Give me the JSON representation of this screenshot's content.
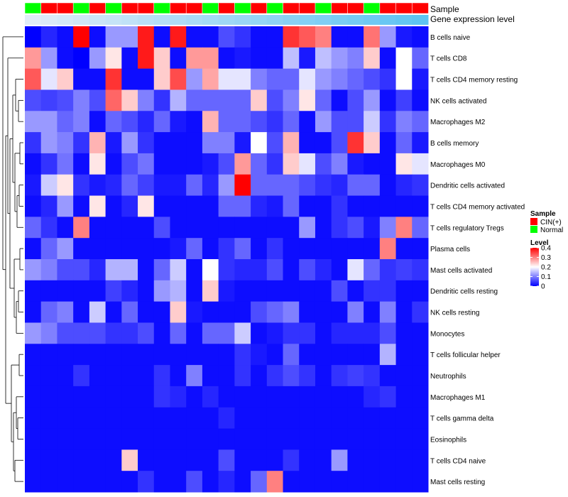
{
  "chart_data": {
    "type": "heatmap",
    "title": "",
    "annotations": {
      "sample_label": "Sample",
      "gene_label": "Gene expression level",
      "sample_groups": [
        "N",
        "C",
        "C",
        "N",
        "C",
        "N",
        "C",
        "C",
        "N",
        "C",
        "C",
        "N",
        "C",
        "N",
        "C",
        "N",
        "C",
        "C",
        "N",
        "C",
        "C",
        "N",
        "C",
        "C",
        "C"
      ]
    },
    "legend": {
      "sample_title": "Sample",
      "sample_items": [
        {
          "label": "CIN(+)",
          "color": "#ff0000"
        },
        {
          "label": "Normal",
          "color": "#00ff00"
        }
      ],
      "level_title": "Level",
      "level_ticks": [
        "0.4",
        "0.3",
        "0.2",
        "0.1",
        "0"
      ],
      "level_values": [
        0.4,
        0.3,
        0.2,
        0.1,
        0.0
      ]
    },
    "rows": [
      "B cells naive",
      "T cells CD8",
      "T cells CD4 memory resting",
      "NK cells activated",
      "Macrophages M2",
      "B cells memory",
      "Macrophages M0",
      "Dendritic cells activated",
      "T cells CD4 memory activated",
      "T cells regulatory  Tregs",
      "Plasma cells",
      "Mast cells activated",
      "Dendritic cells resting",
      "NK cells resting",
      "Monocytes",
      "T cells follicular helper",
      "Neutrophils",
      "Macrophages M1",
      "T cells gamma delta",
      "Eosinophils",
      "T cells CD4 naive",
      "Mast cells resting"
    ],
    "values": [
      [
        0,
        0.03,
        0.01,
        0.4,
        0.01,
        0.12,
        0.12,
        0.38,
        0.01,
        0.38,
        0.01,
        0.01,
        0.06,
        0.04,
        0.01,
        0.01,
        0.36,
        0.33,
        0.3,
        0.01,
        0.01,
        0.31,
        0.12,
        0.02,
        0.01
      ],
      [
        0.28,
        0.12,
        0.01,
        0,
        0.12,
        0.22,
        0.01,
        0.38,
        0.24,
        0.01,
        0.28,
        0.28,
        0.01,
        0.02,
        0.01,
        0.01,
        0.15,
        0.02,
        0.15,
        0.12,
        0.1,
        0.24,
        0.01,
        0.2,
        0.08
      ],
      [
        0.33,
        0.18,
        0.24,
        0.01,
        0.01,
        0.36,
        0.01,
        0.01,
        0.24,
        0.34,
        0.12,
        0.27,
        0.18,
        0.18,
        0.1,
        0.08,
        0.08,
        0.18,
        0.12,
        0.1,
        0.08,
        0.06,
        0.04,
        0.2,
        0.02
      ],
      [
        0.06,
        0.05,
        0.06,
        0.1,
        0.06,
        0.32,
        0.24,
        0.1,
        0.04,
        0.14,
        0.08,
        0.08,
        0.08,
        0.08,
        0.24,
        0.06,
        0.1,
        0.22,
        0.08,
        0.01,
        0.06,
        0.12,
        0.01,
        0.05,
        0.01
      ],
      [
        0.12,
        0.12,
        0.08,
        0.1,
        0.01,
        0.08,
        0.06,
        0.03,
        0.08,
        0.02,
        0.01,
        0.26,
        0.08,
        0.08,
        0.06,
        0.04,
        0.08,
        0.01,
        0.12,
        0.06,
        0.06,
        0.16,
        0.04,
        0.1,
        0.08
      ],
      [
        0.04,
        0.12,
        0.1,
        0.04,
        0.26,
        0.02,
        0.12,
        0.04,
        0.01,
        0.01,
        0.01,
        0.1,
        0.1,
        0.02,
        0.2,
        0.06,
        0.26,
        0.01,
        0.01,
        0.06,
        0.36,
        0.24,
        0.01,
        0.08,
        0.02
      ],
      [
        0.01,
        0.04,
        0.09,
        0.01,
        0.22,
        0.01,
        0.06,
        0.09,
        0.01,
        0.01,
        0.01,
        0.02,
        0.06,
        0.28,
        0.08,
        0.04,
        0.24,
        0.18,
        0.06,
        0.1,
        0.02,
        0.01,
        0.01,
        0.22,
        0.18
      ],
      [
        0.02,
        0.16,
        0.22,
        0.04,
        0.02,
        0.03,
        0.08,
        0.05,
        0.02,
        0.02,
        0.08,
        0.03,
        0.12,
        0.4,
        0.08,
        0.08,
        0.08,
        0.06,
        0.04,
        0.03,
        0.08,
        0.08,
        0.01,
        0.03,
        0.04
      ],
      [
        0.01,
        0.03,
        0.12,
        0.01,
        0.22,
        0.01,
        0.03,
        0.22,
        0.01,
        0.01,
        0.01,
        0.01,
        0.08,
        0.08,
        0.03,
        0.02,
        0.08,
        0.01,
        0.01,
        0.04,
        0.01,
        0.01,
        0.01,
        0.01,
        0.01
      ],
      [
        0.08,
        0.04,
        0.01,
        0.3,
        0.01,
        0.01,
        0.01,
        0.01,
        0.06,
        0.01,
        0.01,
        0.01,
        0.01,
        0.01,
        0.01,
        0.01,
        0.01,
        0.12,
        0.01,
        0.04,
        0.06,
        0.02,
        0.1,
        0.3,
        0.08
      ],
      [
        0.01,
        0.08,
        0.12,
        0.01,
        0.01,
        0.01,
        0.01,
        0.01,
        0.01,
        0.02,
        0.08,
        0.01,
        0.04,
        0.08,
        0.01,
        0.04,
        0.01,
        0.01,
        0.01,
        0.01,
        0.01,
        0.01,
        0.3,
        0.01,
        0.01
      ],
      [
        0.12,
        0.1,
        0.06,
        0.06,
        0.03,
        0.14,
        0.14,
        0.01,
        0.08,
        0.16,
        0.01,
        0.2,
        0.04,
        0.03,
        0.03,
        0.06,
        0.01,
        0.06,
        0.03,
        0.01,
        0.18,
        0.08,
        0.04,
        0.05,
        0.04
      ],
      [
        0.01,
        0.01,
        0.01,
        0.01,
        0.01,
        0.05,
        0.03,
        0.01,
        0.12,
        0.14,
        0.01,
        0.24,
        0.02,
        0.01,
        0.01,
        0.01,
        0.01,
        0.01,
        0.01,
        0.06,
        0.01,
        0.04,
        0.04,
        0.01,
        0.01
      ],
      [
        0.01,
        0.08,
        0.1,
        0.01,
        0.16,
        0.01,
        0.08,
        0.01,
        0.01,
        0.24,
        0.02,
        0.01,
        0.01,
        0.01,
        0.06,
        0.08,
        0.1,
        0.01,
        0.01,
        0.01,
        0.1,
        0.01,
        0.1,
        0.01,
        0.04
      ],
      [
        0.12,
        0.1,
        0.06,
        0.06,
        0.06,
        0.04,
        0.04,
        0.06,
        0.01,
        0.08,
        0.01,
        0.08,
        0.08,
        0.16,
        0.01,
        0.02,
        0.04,
        0.04,
        0.01,
        0.03,
        0.03,
        0.03,
        0.06,
        0.01,
        0.01
      ],
      [
        0.01,
        0.01,
        0.01,
        0.01,
        0.01,
        0.01,
        0.01,
        0.01,
        0.01,
        0.01,
        0.01,
        0.01,
        0.01,
        0.04,
        0.02,
        0.01,
        0.08,
        0.01,
        0.01,
        0.01,
        0.01,
        0.01,
        0.14,
        0.01,
        0.01
      ],
      [
        0.01,
        0.01,
        0.01,
        0.04,
        0.01,
        0.01,
        0.01,
        0.01,
        0.04,
        0.01,
        0.1,
        0.01,
        0.01,
        0.04,
        0.01,
        0.04,
        0.06,
        0.04,
        0.01,
        0.04,
        0.05,
        0.04,
        0.01,
        0.01,
        0.01
      ],
      [
        0.01,
        0.01,
        0.01,
        0.01,
        0.01,
        0.01,
        0.01,
        0.01,
        0.04,
        0.03,
        0.01,
        0.03,
        0.01,
        0.01,
        0.01,
        0.01,
        0.01,
        0.01,
        0.01,
        0.01,
        0.01,
        0.03,
        0.04,
        0.01,
        0.01
      ],
      [
        0.01,
        0.01,
        0.01,
        0.01,
        0.01,
        0.01,
        0.01,
        0.01,
        0.01,
        0.01,
        0.01,
        0.01,
        0.03,
        0.01,
        0.01,
        0.01,
        0.01,
        0.01,
        0.01,
        0.01,
        0.01,
        0.01,
        0.01,
        0.01,
        0.01
      ],
      [
        0.01,
        0.01,
        0.01,
        0.01,
        0.01,
        0.01,
        0.01,
        0.01,
        0.01,
        0.01,
        0.01,
        0.01,
        0.01,
        0.01,
        0.01,
        0.01,
        0.01,
        0.01,
        0.01,
        0.01,
        0.01,
        0.01,
        0.01,
        0.01,
        0.01
      ],
      [
        0.01,
        0.01,
        0.01,
        0.01,
        0.01,
        0.01,
        0.24,
        0.01,
        0.01,
        0.01,
        0.01,
        0.01,
        0.06,
        0.01,
        0.01,
        0.01,
        0.04,
        0.01,
        0.01,
        0.12,
        0.01,
        0.01,
        0.01,
        0.01,
        0.01
      ],
      [
        0.01,
        0.01,
        0.01,
        0.01,
        0.01,
        0.01,
        0.01,
        0.04,
        0.01,
        0.01,
        0.06,
        0.01,
        0.03,
        0.01,
        0.08,
        0.3,
        0.01,
        0.01,
        0.01,
        0.01,
        0.01,
        0.01,
        0.01,
        0.01,
        0.01
      ]
    ]
  }
}
